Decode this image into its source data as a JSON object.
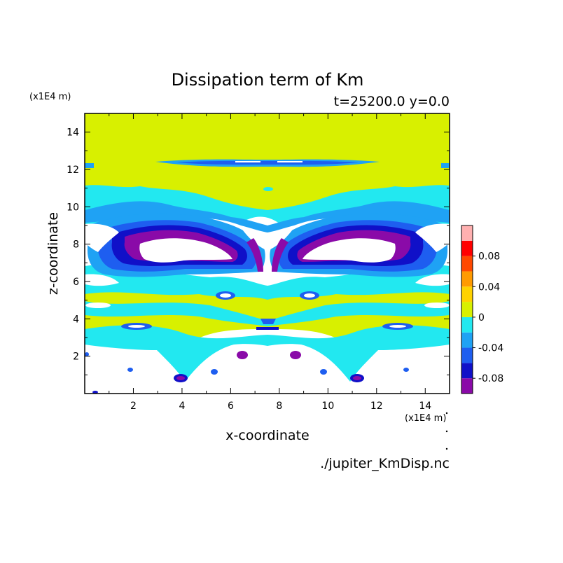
{
  "chart_data": {
    "type": "heatmap",
    "title": "Dissipation term of Km",
    "subtitle": "t=25200.0 y=0.0",
    "xlabel": "x-coordinate",
    "ylabel": "z-coordinate",
    "x_unit": "(x1E4 m)",
    "z_unit": "(x1E4 m)",
    "xlim": [
      0,
      15
    ],
    "ylim": [
      0,
      15
    ],
    "x_ticks": [
      "2",
      "4",
      "6",
      "8",
      "10",
      "12",
      "14"
    ],
    "y_ticks": [
      "2",
      "4",
      "6",
      "8",
      "10",
      "12",
      "14"
    ],
    "footer": "./jupiter_KmDisp.nc",
    "colorbar": {
      "tick_labels": [
        "0.08",
        "0.04",
        "0",
        "-0.04",
        "-0.08"
      ],
      "tick_values": [
        0.08,
        0.04,
        0,
        -0.04,
        -0.08
      ],
      "levels": [
        {
          "min": -0.1,
          "max": -0.08,
          "color": "#8a0aa8"
        },
        {
          "min": -0.08,
          "max": -0.06,
          "color": "#1010c8"
        },
        {
          "min": -0.06,
          "max": -0.04,
          "color": "#1e5ef0"
        },
        {
          "min": -0.04,
          "max": -0.02,
          "color": "#1fa2f4"
        },
        {
          "min": -0.02,
          "max": 0.0,
          "color": "#22e8f0"
        },
        {
          "min": 0.0,
          "max": 0.02,
          "color": "#d8f000"
        },
        {
          "min": 0.02,
          "max": 0.04,
          "color": "#ffd200"
        },
        {
          "min": 0.04,
          "max": 0.06,
          "color": "#ff9a00"
        },
        {
          "min": 0.06,
          "max": 0.08,
          "color": "#ff4800"
        },
        {
          "min": 0.08,
          "max": 0.1,
          "color": "#ff0000"
        },
        {
          "min": 0.1,
          "max": 0.12,
          "color": "#ffb0b0"
        }
      ]
    },
    "field_features": [
      {
        "label": "top yellow region",
        "value": 0.005,
        "x": [
          0,
          15
        ],
        "z": [
          10,
          15
        ]
      },
      {
        "label": "near-surface white region",
        "value": -0.15,
        "x": [
          0,
          15
        ],
        "z": [
          0,
          3
        ]
      },
      {
        "label": "mid-level blue/purple vortex pair",
        "value": -0.09,
        "x": [
          2.5,
          12.5
        ],
        "z": [
          6.2,
          9.0
        ]
      }
    ]
  }
}
